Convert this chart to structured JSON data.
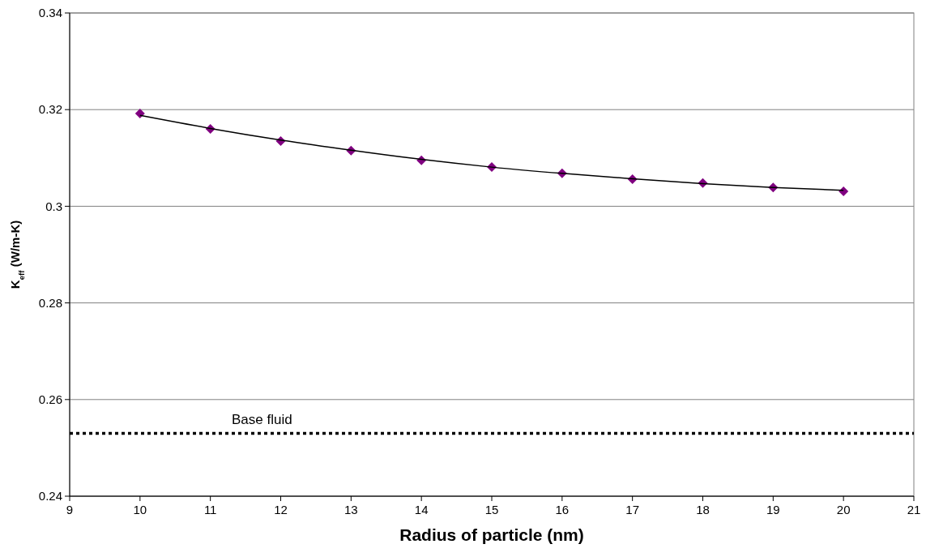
{
  "chart_data": {
    "type": "scatter",
    "xlabel": "Radius of particle (nm)",
    "ylabel": "K$_{eff}$ (W/m-K)",
    "x": [
      10,
      11,
      12,
      13,
      14,
      15,
      16,
      17,
      18,
      19,
      20
    ],
    "series": [
      {
        "color": "#800080",
        "marker": "diamond",
        "values": [
          0.3192,
          0.316,
          0.3135,
          0.3115,
          0.3095,
          0.3081,
          0.3068,
          0.3056,
          0.3048,
          0.3039,
          0.3031
        ]
      },
      {
        "type": "line",
        "color": "#000000",
        "marker": "none",
        "x": [
          10,
          11,
          12,
          13,
          14,
          15,
          16,
          17,
          18,
          19,
          20
        ],
        "values": [
          0.3188,
          0.3161,
          0.3137,
          0.3116,
          0.3097,
          0.3081,
          0.3068,
          0.3057,
          0.3047,
          0.3039,
          0.3033
        ]
      }
    ],
    "xlim": [
      9,
      21
    ],
    "xticks": [
      9,
      10,
      11,
      12,
      13,
      14,
      15,
      16,
      17,
      18,
      19,
      20,
      21
    ],
    "ylim": [
      0.24,
      0.34
    ],
    "yticks": [
      0.24,
      0.26,
      0.28,
      0.3,
      0.32,
      0.34
    ],
    "grid": "y",
    "ref_lines": [
      {
        "axis": "y",
        "value": 0.253,
        "label": "Base fluid",
        "color": "#000000",
        "line_style": "dotted"
      }
    ]
  }
}
